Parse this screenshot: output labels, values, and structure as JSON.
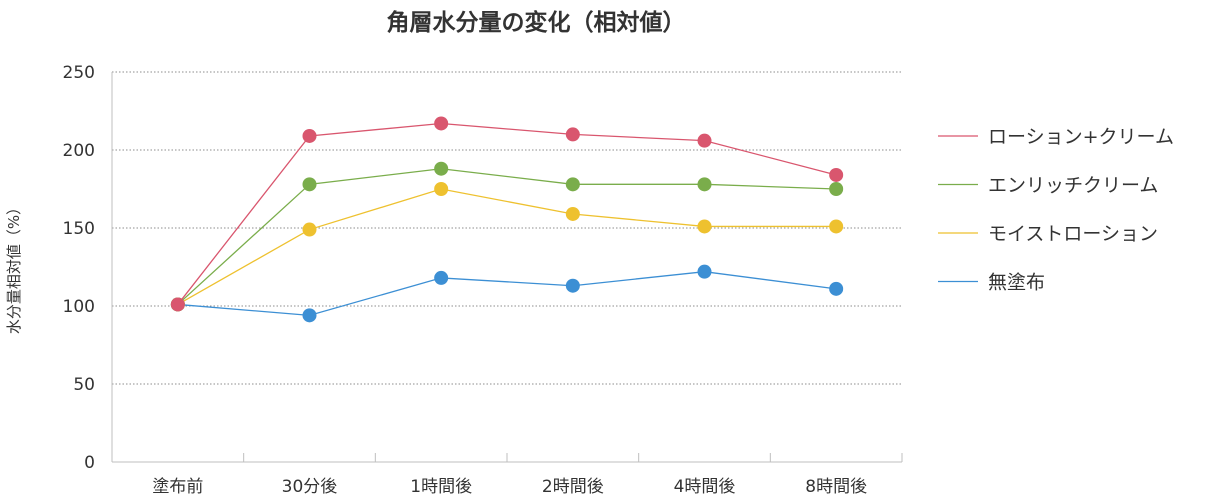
{
  "chart_data": {
    "type": "line",
    "title": "角層水分量の変化（相対値）",
    "xlabel": "",
    "ylabel": "水分量相対値（%）",
    "categories": [
      "塗布前",
      "30分後",
      "1時間後",
      "2時間後",
      "4時間後",
      "8時間後"
    ],
    "ylim": [
      0,
      250
    ],
    "yticks": [
      0,
      50,
      100,
      150,
      200,
      250
    ],
    "grid": "horizontal dotted",
    "legend_position": "right",
    "series": [
      {
        "name": "ローション+クリーム",
        "color": "#d9566e",
        "values": [
          101,
          209,
          217,
          210,
          206,
          184
        ]
      },
      {
        "name": "エンリッチクリーム",
        "color": "#7aad4b",
        "values": [
          101,
          178,
          188,
          178,
          178,
          175
        ]
      },
      {
        "name": "モイストローション",
        "color": "#eec12f",
        "values": [
          101,
          149,
          175,
          159,
          151,
          151
        ]
      },
      {
        "name": "無塗布",
        "color": "#3c8fd4",
        "values": [
          101,
          94,
          118,
          113,
          122,
          111
        ]
      }
    ]
  }
}
